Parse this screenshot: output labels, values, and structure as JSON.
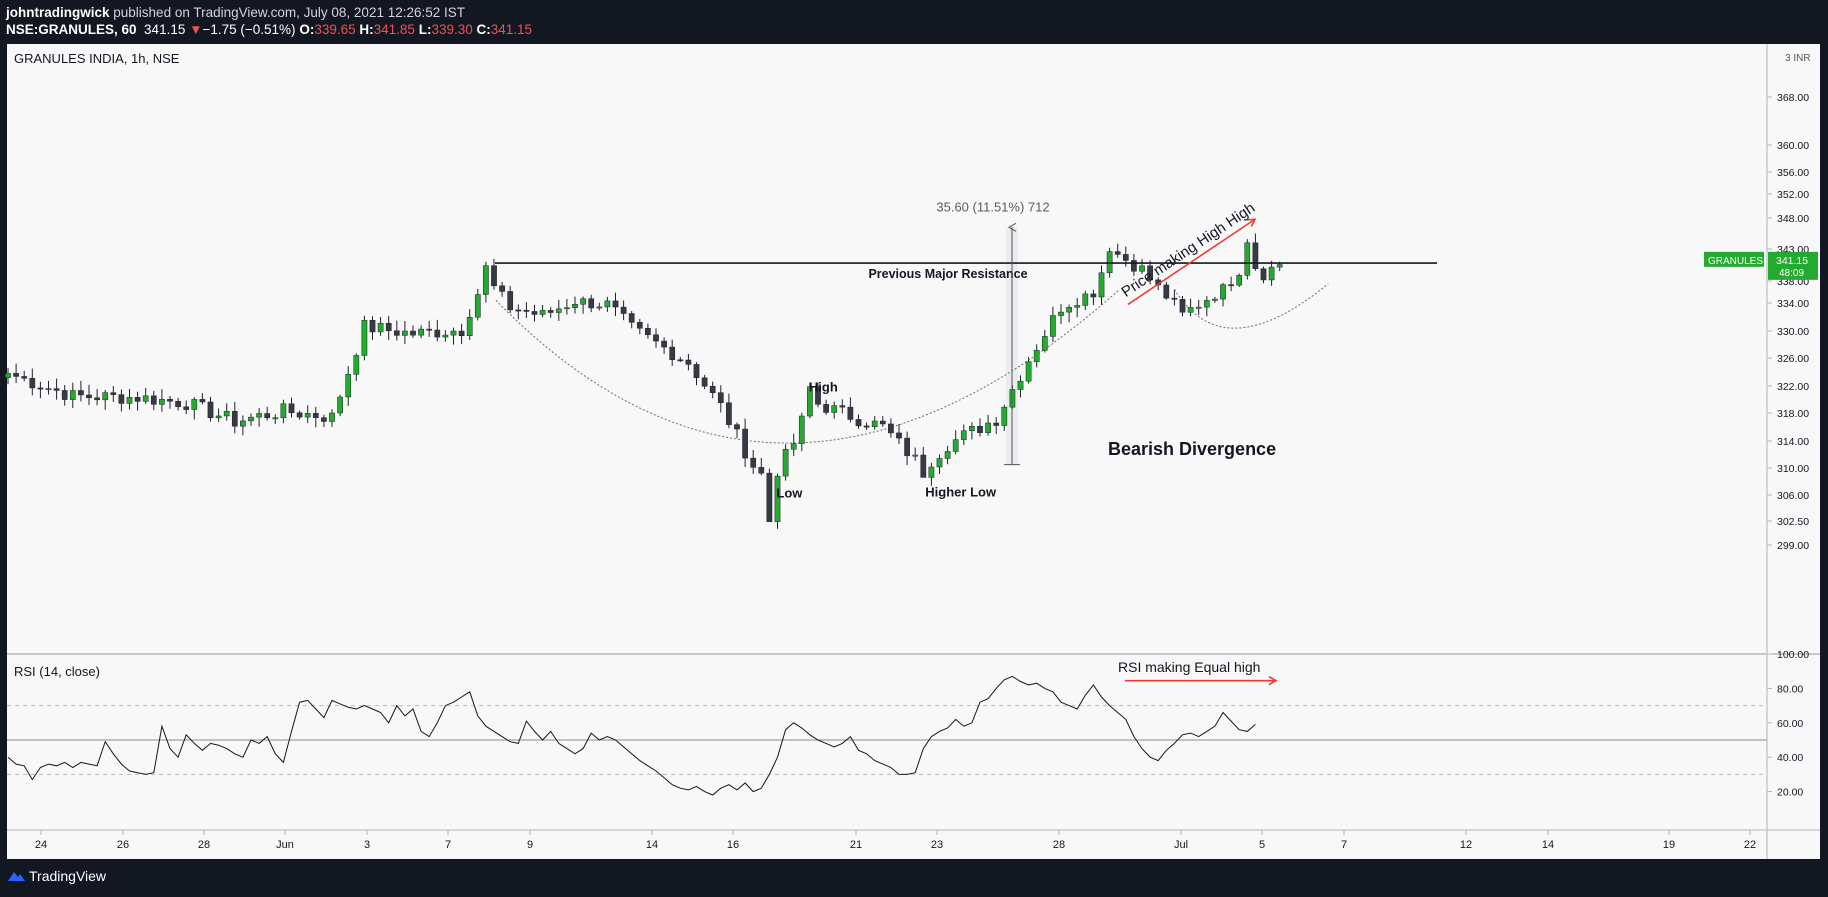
{
  "header": {
    "author": "johntradingwick",
    "published_text": "published on TradingView.com, July 08, 2021 12:26:52 IST",
    "symbol": "NSE:GRANULES, 60",
    "last": "341.15",
    "change_arrow": "▼",
    "change": "−1.75 (−0.51%)",
    "o_label": "O:",
    "o_value": "339.65",
    "h_label": "H:",
    "h_value": "341.85",
    "l_label": "L:",
    "l_value": "339.30",
    "c_label": "C:",
    "c_value": "341.15"
  },
  "footer": {
    "brand": "TradingView"
  },
  "colors": {
    "up": "#22ab2f",
    "down": "#363a45",
    "accent": "#ef5350",
    "bg": "#f8f8f8"
  },
  "chart_data": [
    {
      "type": "candlestick",
      "title": "GRANULES INDIA, 1h, NSE",
      "currency": "INR",
      "scale_label": "3",
      "y_ticks": [
        "368.00",
        "360.00",
        "356.00",
        "352.00",
        "348.00",
        "343.00",
        "338.00",
        "334.00",
        "330.00",
        "326.00",
        "322.00",
        "318.00",
        "314.00",
        "310.00",
        "306.00",
        "302.50",
        "299.00"
      ],
      "ylim": [
        297,
        373
      ],
      "x_ticks": [
        "24",
        "26",
        "28",
        "Jun",
        "3",
        "7",
        "9",
        "14",
        "16",
        "21",
        "23",
        "28",
        "Jul",
        "5",
        "7",
        "12",
        "14",
        "19",
        "22"
      ],
      "price_label": {
        "symbol": "GRANULES",
        "price": "341.15",
        "countdown": "48:09"
      },
      "resistance": 340.8,
      "annotations": [
        {
          "text": "35.60 (11.51%) 712"
        },
        {
          "text": "Previous Major Resistance"
        },
        {
          "text": "Price making High High"
        },
        {
          "text": "High"
        },
        {
          "text": "Low"
        },
        {
          "text": "Higher Low"
        },
        {
          "text": "Bearish Divergence"
        }
      ],
      "key_points": [
        {
          "label": "swing-high",
          "x_index": 59,
          "price": 341.0
        },
        {
          "label": "low",
          "x_index": 94,
          "price": 303.0
        },
        {
          "label": "high",
          "x_index": 99,
          "price": 322.5
        },
        {
          "label": "higher-low",
          "x_index": 113,
          "price": 309.2
        },
        {
          "label": "high-high",
          "x_index": 136,
          "price": 343.2
        },
        {
          "label": "recent-high",
          "x_index": 153,
          "price": 344.6
        }
      ],
      "close_path": [
        [
          0,
          323.8
        ],
        [
          8,
          320.5
        ],
        [
          16,
          320.3
        ],
        [
          22,
          319.5
        ],
        [
          28,
          316.8
        ],
        [
          34,
          318.3
        ],
        [
          40,
          317.4
        ],
        [
          44,
          330.6
        ],
        [
          50,
          329.6
        ],
        [
          56,
          330.2
        ],
        [
          59,
          338.5
        ],
        [
          62,
          333.4
        ],
        [
          66,
          332.2
        ],
        [
          70,
          334.4
        ],
        [
          74,
          333.8
        ],
        [
          77,
          330.3
        ],
        [
          84,
          325.4
        ],
        [
          88,
          319.0
        ],
        [
          92,
          310.4
        ],
        [
          94,
          307.7
        ],
        [
          97,
          313.7
        ],
        [
          99,
          319.8
        ],
        [
          103,
          318.0
        ],
        [
          108,
          316.0
        ],
        [
          113,
          310.0
        ],
        [
          116,
          313.5
        ],
        [
          122,
          317.2
        ],
        [
          126,
          325.8
        ],
        [
          130,
          333.5
        ],
        [
          134,
          336.0
        ],
        [
          136,
          343.0
        ],
        [
          140,
          339.8
        ],
        [
          145,
          332.2
        ],
        [
          150,
          336.5
        ],
        [
          153,
          341.5
        ],
        [
          155,
          339.2
        ],
        [
          157,
          340.7
        ]
      ]
    },
    {
      "type": "line",
      "title": "RSI (14, close)",
      "ylim": [
        10,
        100
      ],
      "y_ticks": [
        "100.00",
        "80.00",
        "60.00",
        "40.00",
        "20.00"
      ],
      "bands": [
        70,
        50,
        30
      ],
      "annotation": "RSI making Equal high",
      "values": [
        40,
        36,
        35,
        27,
        34,
        36,
        35,
        37,
        34,
        37,
        36,
        35,
        49,
        42,
        36,
        32,
        31,
        30,
        31,
        58,
        45,
        40,
        53,
        48,
        44,
        48,
        47,
        45,
        42,
        40,
        50,
        48,
        52,
        42,
        37,
        55,
        72,
        73,
        68,
        63,
        73,
        71,
        69,
        68,
        70,
        68,
        66,
        60,
        70,
        64,
        68,
        55,
        52,
        60,
        70,
        72,
        75,
        78,
        64,
        58,
        55,
        52,
        49,
        48,
        61,
        55,
        50,
        55,
        48,
        45,
        42,
        45,
        54,
        50,
        52,
        50,
        46,
        42,
        38,
        35,
        32,
        28,
        24,
        22,
        21,
        23,
        20,
        18,
        22,
        24,
        21,
        25,
        20,
        22,
        30,
        40,
        56,
        60,
        57,
        53,
        50,
        48,
        46,
        48,
        52,
        44,
        42,
        38,
        36,
        34,
        30,
        30,
        31,
        45,
        52,
        55,
        57,
        62,
        58,
        60,
        72,
        74,
        80,
        85,
        87,
        84,
        82,
        83,
        80,
        78,
        72,
        70,
        68,
        76,
        82,
        75,
        70,
        66,
        62,
        52,
        45,
        40,
        38,
        44,
        48,
        53,
        54,
        52,
        55,
        58,
        66,
        61,
        56,
        55,
        59
      ]
    }
  ]
}
